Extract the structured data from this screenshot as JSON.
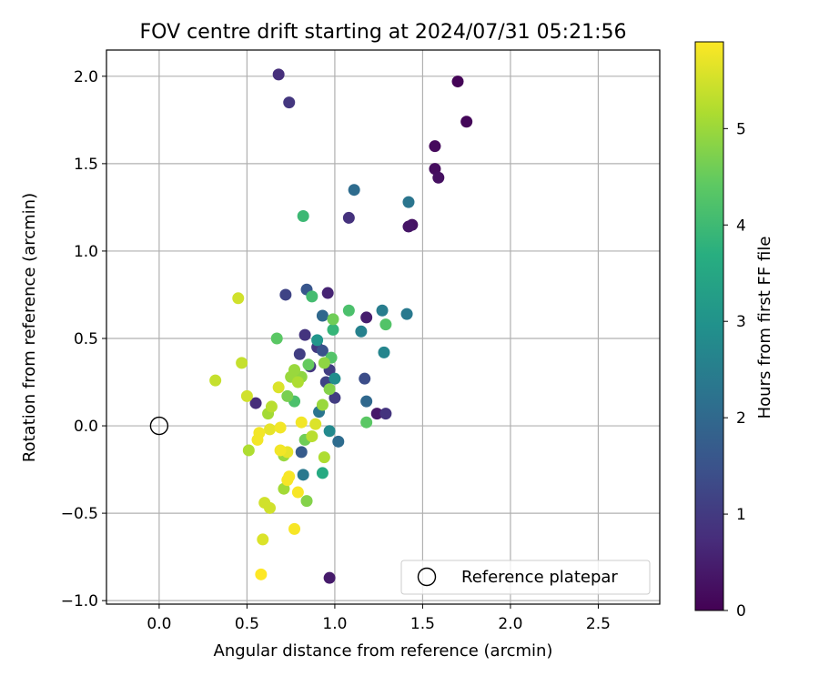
{
  "chart_data": {
    "type": "scatter",
    "title": "FOV centre drift starting at 2024/07/31 05:21:56",
    "xlabel": "Angular distance from reference (arcmin)",
    "ylabel": "Rotation from reference (arcmin)",
    "xlim": [
      -0.3,
      2.85
    ],
    "ylim": [
      -1.02,
      2.15
    ],
    "xticks": [
      0.0,
      0.5,
      1.0,
      1.5,
      2.0,
      2.5
    ],
    "xtick_labels": [
      "0.0",
      "0.5",
      "1.0",
      "1.5",
      "2.0",
      "2.5"
    ],
    "yticks": [
      -1.0,
      -0.5,
      0.0,
      0.5,
      1.0,
      1.5,
      2.0
    ],
    "ytick_labels": [
      "−1.0",
      "−0.5",
      "0.0",
      "0.5",
      "1.0",
      "1.5",
      "2.0"
    ],
    "grid": true,
    "legend": {
      "position": "lower-right",
      "entries": [
        "Reference platepar"
      ]
    },
    "reference_point": {
      "x": 0.0,
      "y": 0.0
    },
    "colorbar": {
      "label": "Hours from first FF file",
      "colormap": "viridis",
      "range": [
        0,
        5.9
      ],
      "ticks": [
        0,
        1,
        2,
        3,
        4,
        5
      ],
      "tick_labels": [
        "0",
        "1",
        "2",
        "3",
        "4",
        "5"
      ]
    },
    "points": [
      {
        "x": 1.7,
        "y": 1.97,
        "t": 0.05
      },
      {
        "x": 1.75,
        "y": 1.74,
        "t": 0.1
      },
      {
        "x": 1.57,
        "y": 1.6,
        "t": 0.15
      },
      {
        "x": 1.57,
        "y": 1.47,
        "t": 0.2
      },
      {
        "x": 1.59,
        "y": 1.42,
        "t": 0.25
      },
      {
        "x": 1.44,
        "y": 1.15,
        "t": 0.3
      },
      {
        "x": 1.42,
        "y": 1.14,
        "t": 0.35
      },
      {
        "x": 1.24,
        "y": 0.07,
        "t": 0.4
      },
      {
        "x": 0.97,
        "y": -0.87,
        "t": 0.45
      },
      {
        "x": 1.18,
        "y": 0.62,
        "t": 0.5
      },
      {
        "x": 0.96,
        "y": 0.76,
        "t": 0.6
      },
      {
        "x": 0.68,
        "y": 2.01,
        "t": 0.8
      },
      {
        "x": 1.08,
        "y": 1.19,
        "t": 0.85
      },
      {
        "x": 0.74,
        "y": 1.85,
        "t": 0.95
      },
      {
        "x": 1.29,
        "y": 0.07,
        "t": 0.9
      },
      {
        "x": 0.55,
        "y": 0.13,
        "t": 0.75
      },
      {
        "x": 0.83,
        "y": 0.52,
        "t": 0.9
      },
      {
        "x": 0.9,
        "y": 0.45,
        "t": 1.0
      },
      {
        "x": 0.86,
        "y": 0.34,
        "t": 0.95
      },
      {
        "x": 0.8,
        "y": 0.41,
        "t": 1.1
      },
      {
        "x": 1.0,
        "y": 0.16,
        "t": 1.05
      },
      {
        "x": 0.72,
        "y": 0.75,
        "t": 1.2
      },
      {
        "x": 1.17,
        "y": 0.27,
        "t": 1.4
      },
      {
        "x": 0.95,
        "y": 0.25,
        "t": 1.2
      },
      {
        "x": 0.97,
        "y": 0.32,
        "t": 1.1
      },
      {
        "x": 0.93,
        "y": 0.43,
        "t": 1.5
      },
      {
        "x": 0.84,
        "y": 0.78,
        "t": 1.6
      },
      {
        "x": 1.11,
        "y": 1.35,
        "t": 2.1
      },
      {
        "x": 1.42,
        "y": 1.28,
        "t": 2.3
      },
      {
        "x": 0.93,
        "y": 0.63,
        "t": 2.0
      },
      {
        "x": 0.81,
        "y": -0.15,
        "t": 1.7
      },
      {
        "x": 1.18,
        "y": 0.14,
        "t": 2.0
      },
      {
        "x": 1.02,
        "y": -0.09,
        "t": 2.1
      },
      {
        "x": 0.91,
        "y": 0.08,
        "t": 2.3
      },
      {
        "x": 0.82,
        "y": -0.28,
        "t": 2.4
      },
      {
        "x": 1.27,
        "y": 0.66,
        "t": 2.5
      },
      {
        "x": 1.41,
        "y": 0.64,
        "t": 2.4
      },
      {
        "x": 1.15,
        "y": 0.54,
        "t": 2.6
      },
      {
        "x": 1.28,
        "y": 0.42,
        "t": 2.7
      },
      {
        "x": 0.97,
        "y": -0.03,
        "t": 2.8
      },
      {
        "x": 1.0,
        "y": 0.27,
        "t": 2.9
      },
      {
        "x": 0.9,
        "y": 0.49,
        "t": 3.1
      },
      {
        "x": 0.93,
        "y": -0.27,
        "t": 3.6
      },
      {
        "x": 0.82,
        "y": 1.2,
        "t": 4.0
      },
      {
        "x": 0.87,
        "y": 0.74,
        "t": 4.1
      },
      {
        "x": 1.08,
        "y": 0.66,
        "t": 4.2
      },
      {
        "x": 0.99,
        "y": 0.55,
        "t": 3.9
      },
      {
        "x": 0.98,
        "y": 0.39,
        "t": 4.3
      },
      {
        "x": 1.29,
        "y": 0.58,
        "t": 4.3
      },
      {
        "x": 1.18,
        "y": 0.02,
        "t": 4.4
      },
      {
        "x": 0.77,
        "y": 0.14,
        "t": 4.2
      },
      {
        "x": 0.67,
        "y": 0.5,
        "t": 4.4
      },
      {
        "x": 0.85,
        "y": 0.35,
        "t": 4.5
      },
      {
        "x": 0.99,
        "y": 0.61,
        "t": 4.6
      },
      {
        "x": 0.83,
        "y": -0.08,
        "t": 4.6
      },
      {
        "x": 0.73,
        "y": 0.17,
        "t": 4.7
      },
      {
        "x": 0.84,
        "y": -0.43,
        "t": 4.8
      },
      {
        "x": 0.94,
        "y": 0.36,
        "t": 4.9
      },
      {
        "x": 0.97,
        "y": 0.21,
        "t": 4.8
      },
      {
        "x": 0.81,
        "y": 0.28,
        "t": 4.9
      },
      {
        "x": 0.75,
        "y": 0.28,
        "t": 5.0
      },
      {
        "x": 0.77,
        "y": 0.32,
        "t": 5.0
      },
      {
        "x": 0.71,
        "y": -0.36,
        "t": 5.1
      },
      {
        "x": 0.62,
        "y": 0.07,
        "t": 5.1
      },
      {
        "x": 0.93,
        "y": 0.12,
        "t": 5.0
      },
      {
        "x": 0.94,
        "y": -0.18,
        "t": 5.2
      },
      {
        "x": 0.79,
        "y": 0.25,
        "t": 5.2
      },
      {
        "x": 0.71,
        "y": -0.17,
        "t": 5.0
      },
      {
        "x": 0.51,
        "y": -0.14,
        "t": 5.2
      },
      {
        "x": 0.64,
        "y": 0.11,
        "t": 5.3
      },
      {
        "x": 0.87,
        "y": -0.06,
        "t": 5.3
      },
      {
        "x": 0.47,
        "y": 0.36,
        "t": 5.4
      },
      {
        "x": 0.32,
        "y": 0.26,
        "t": 5.4
      },
      {
        "x": 0.45,
        "y": 0.73,
        "t": 5.5
      },
      {
        "x": 0.5,
        "y": 0.17,
        "t": 5.5
      },
      {
        "x": 0.6,
        "y": -0.44,
        "t": 5.5
      },
      {
        "x": 0.63,
        "y": -0.47,
        "t": 5.5
      },
      {
        "x": 0.59,
        "y": -0.65,
        "t": 5.6
      },
      {
        "x": 0.68,
        "y": 0.22,
        "t": 5.6
      },
      {
        "x": 0.73,
        "y": -0.15,
        "t": 5.7
      },
      {
        "x": 0.63,
        "y": -0.02,
        "t": 5.7
      },
      {
        "x": 0.57,
        "y": -0.04,
        "t": 5.8
      },
      {
        "x": 0.56,
        "y": -0.08,
        "t": 5.8
      },
      {
        "x": 0.69,
        "y": -0.01,
        "t": 5.8
      },
      {
        "x": 0.69,
        "y": -0.14,
        "t": 5.8
      },
      {
        "x": 0.74,
        "y": -0.29,
        "t": 5.85
      },
      {
        "x": 0.73,
        "y": -0.31,
        "t": 5.85
      },
      {
        "x": 0.79,
        "y": -0.38,
        "t": 5.85
      },
      {
        "x": 0.77,
        "y": -0.59,
        "t": 5.85
      },
      {
        "x": 0.58,
        "y": -0.85,
        "t": 5.9
      },
      {
        "x": 0.81,
        "y": 0.02,
        "t": 5.8
      },
      {
        "x": 0.89,
        "y": 0.01,
        "t": 5.6
      }
    ]
  }
}
